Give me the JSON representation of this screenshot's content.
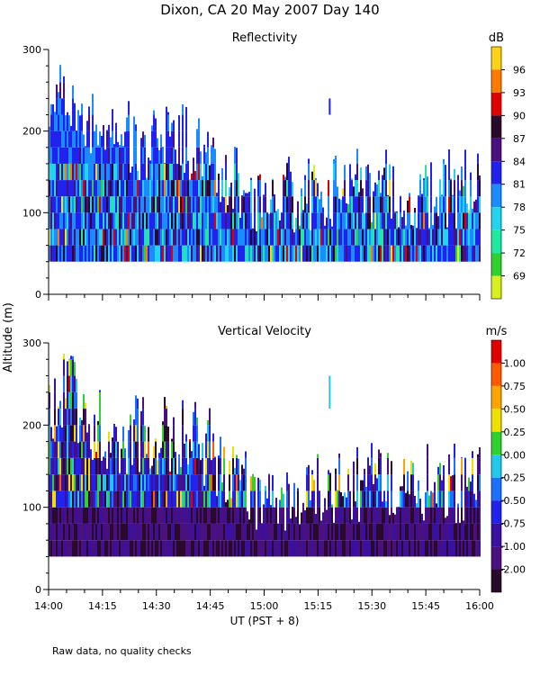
{
  "figure": {
    "title": "Dixon, CA 20 May 2007  Day 140",
    "ylabel": "Altitude (m)",
    "xlabel": "UT  (PST + 8)",
    "footnote": "Raw data, no quality checks"
  },
  "chart_data": [
    {
      "type": "heatmap",
      "title": "Reflectivity",
      "unit": "dB",
      "xlabel": "UT  (PST + 8)",
      "ylabel": "Altitude (m)",
      "xlim": [
        "14:00",
        "16:00"
      ],
      "x_ticks": [
        "14:00",
        "14:15",
        "14:30",
        "14:45",
        "15:00",
        "15:15",
        "15:30",
        "15:45",
        "16:00"
      ],
      "ylim": [
        0,
        300
      ],
      "y_ticks": [
        0,
        100,
        200,
        300
      ],
      "colorbar": {
        "labels": [
          "96",
          "93",
          "90",
          "87",
          "84",
          "81",
          "78",
          "75",
          "72",
          "69"
        ],
        "colors": [
          "#ffd21a",
          "#ff7a00",
          "#e00000",
          "#2a0a2a",
          "#4a1080",
          "#2222ee",
          "#1a8cff",
          "#22d4ee",
          "#20e8a0",
          "#30d030",
          "#d8f020"
        ]
      },
      "echo_top_profile": [
        {
          "time": "14:00",
          "top_m": 258
        },
        {
          "time": "14:05",
          "top_m": 278
        },
        {
          "time": "14:10",
          "top_m": 240
        },
        {
          "time": "14:15",
          "top_m": 225
        },
        {
          "time": "14:20",
          "top_m": 220
        },
        {
          "time": "14:25",
          "top_m": 220
        },
        {
          "time": "14:30",
          "top_m": 220
        },
        {
          "time": "14:35",
          "top_m": 218
        },
        {
          "time": "14:40",
          "top_m": 215
        },
        {
          "time": "14:45",
          "top_m": 200
        },
        {
          "time": "14:50",
          "top_m": 175
        },
        {
          "time": "14:55",
          "top_m": 160
        },
        {
          "time": "15:00",
          "top_m": 140
        },
        {
          "time": "15:05",
          "top_m": 145
        },
        {
          "time": "15:10",
          "top_m": 160
        },
        {
          "time": "15:15",
          "top_m": 155
        },
        {
          "time": "15:20",
          "top_m": 160
        },
        {
          "time": "15:30",
          "top_m": 160
        },
        {
          "time": "15:40",
          "top_m": 160
        },
        {
          "time": "15:50",
          "top_m": 160
        },
        {
          "time": "16:00",
          "top_m": 160
        }
      ],
      "bottom_m": 40,
      "isolated_echo": {
        "time": "15:18",
        "bottom_m": 220,
        "top_m": 240
      }
    },
    {
      "type": "heatmap",
      "title": "Vertical Velocity",
      "unit": "m/s",
      "xlabel": "UT  (PST + 8)",
      "ylabel": "Altitude (m)",
      "xlim": [
        "14:00",
        "16:00"
      ],
      "x_ticks": [
        "14:00",
        "14:15",
        "14:30",
        "14:45",
        "15:00",
        "15:15",
        "15:30",
        "15:45",
        "16:00"
      ],
      "ylim": [
        0,
        300
      ],
      "y_ticks": [
        0,
        100,
        200,
        300
      ],
      "colorbar": {
        "labels": [
          "1.00",
          "0.75",
          "0.50",
          "0.25",
          "0.00",
          "-0.25",
          "-0.50",
          "-0.75",
          "-1.00",
          "-2.00"
        ],
        "colors": [
          "#e00000",
          "#ff5a00",
          "#ffa500",
          "#f0e000",
          "#30d030",
          "#22c8e8",
          "#1a70ff",
          "#2222ee",
          "#3a10a0",
          "#4a1080",
          "#2a0a2a"
        ]
      },
      "echo_top_profile": [
        {
          "time": "14:00",
          "top_m": 258
        },
        {
          "time": "14:05",
          "top_m": 278
        },
        {
          "time": "14:10",
          "top_m": 240
        },
        {
          "time": "14:15",
          "top_m": 225
        },
        {
          "time": "14:20",
          "top_m": 220
        },
        {
          "time": "14:25",
          "top_m": 220
        },
        {
          "time": "14:30",
          "top_m": 220
        },
        {
          "time": "14:35",
          "top_m": 218
        },
        {
          "time": "14:40",
          "top_m": 215
        },
        {
          "time": "14:45",
          "top_m": 200
        },
        {
          "time": "14:50",
          "top_m": 175
        },
        {
          "time": "14:55",
          "top_m": 160
        },
        {
          "time": "15:00",
          "top_m": 140
        },
        {
          "time": "15:05",
          "top_m": 145
        },
        {
          "time": "15:10",
          "top_m": 160
        },
        {
          "time": "15:15",
          "top_m": 155
        },
        {
          "time": "15:20",
          "top_m": 160
        },
        {
          "time": "15:30",
          "top_m": 160
        },
        {
          "time": "15:40",
          "top_m": 160
        },
        {
          "time": "15:50",
          "top_m": 160
        },
        {
          "time": "16:00",
          "top_m": 160
        }
      ],
      "bottom_m": 40,
      "isolated_echo": {
        "time": "15:18",
        "bottom_m": 220,
        "top_m": 260
      }
    }
  ]
}
